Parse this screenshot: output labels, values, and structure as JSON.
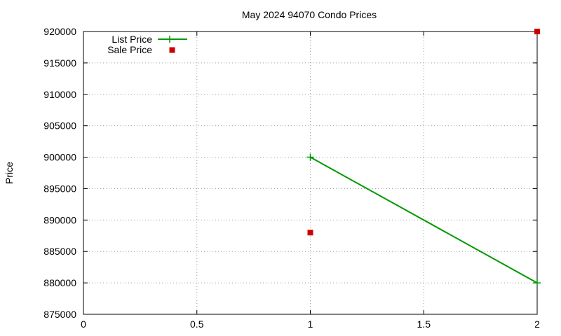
{
  "chart_data": {
    "type": "line",
    "title": "May 2024 94070 Condo Prices",
    "xlabel": "",
    "ylabel": "Price",
    "xlim": [
      0,
      2
    ],
    "ylim": [
      875000,
      920000
    ],
    "xticks": [
      "0",
      "0.5",
      "1",
      "1.5",
      "2"
    ],
    "yticks": [
      "875000",
      "880000",
      "885000",
      "890000",
      "895000",
      "900000",
      "905000",
      "910000",
      "915000",
      "920000"
    ],
    "grid": true,
    "legend_position": "top-left",
    "series": [
      {
        "name": "List Price",
        "style": "line-with-plus-markers",
        "color": "#009900",
        "points": [
          [
            1,
            900000
          ],
          [
            2,
            880000
          ]
        ]
      },
      {
        "name": "Sale Price",
        "style": "square-markers",
        "color": "#cc0000",
        "points": [
          [
            1,
            888000
          ],
          [
            2,
            920000
          ]
        ]
      }
    ]
  }
}
